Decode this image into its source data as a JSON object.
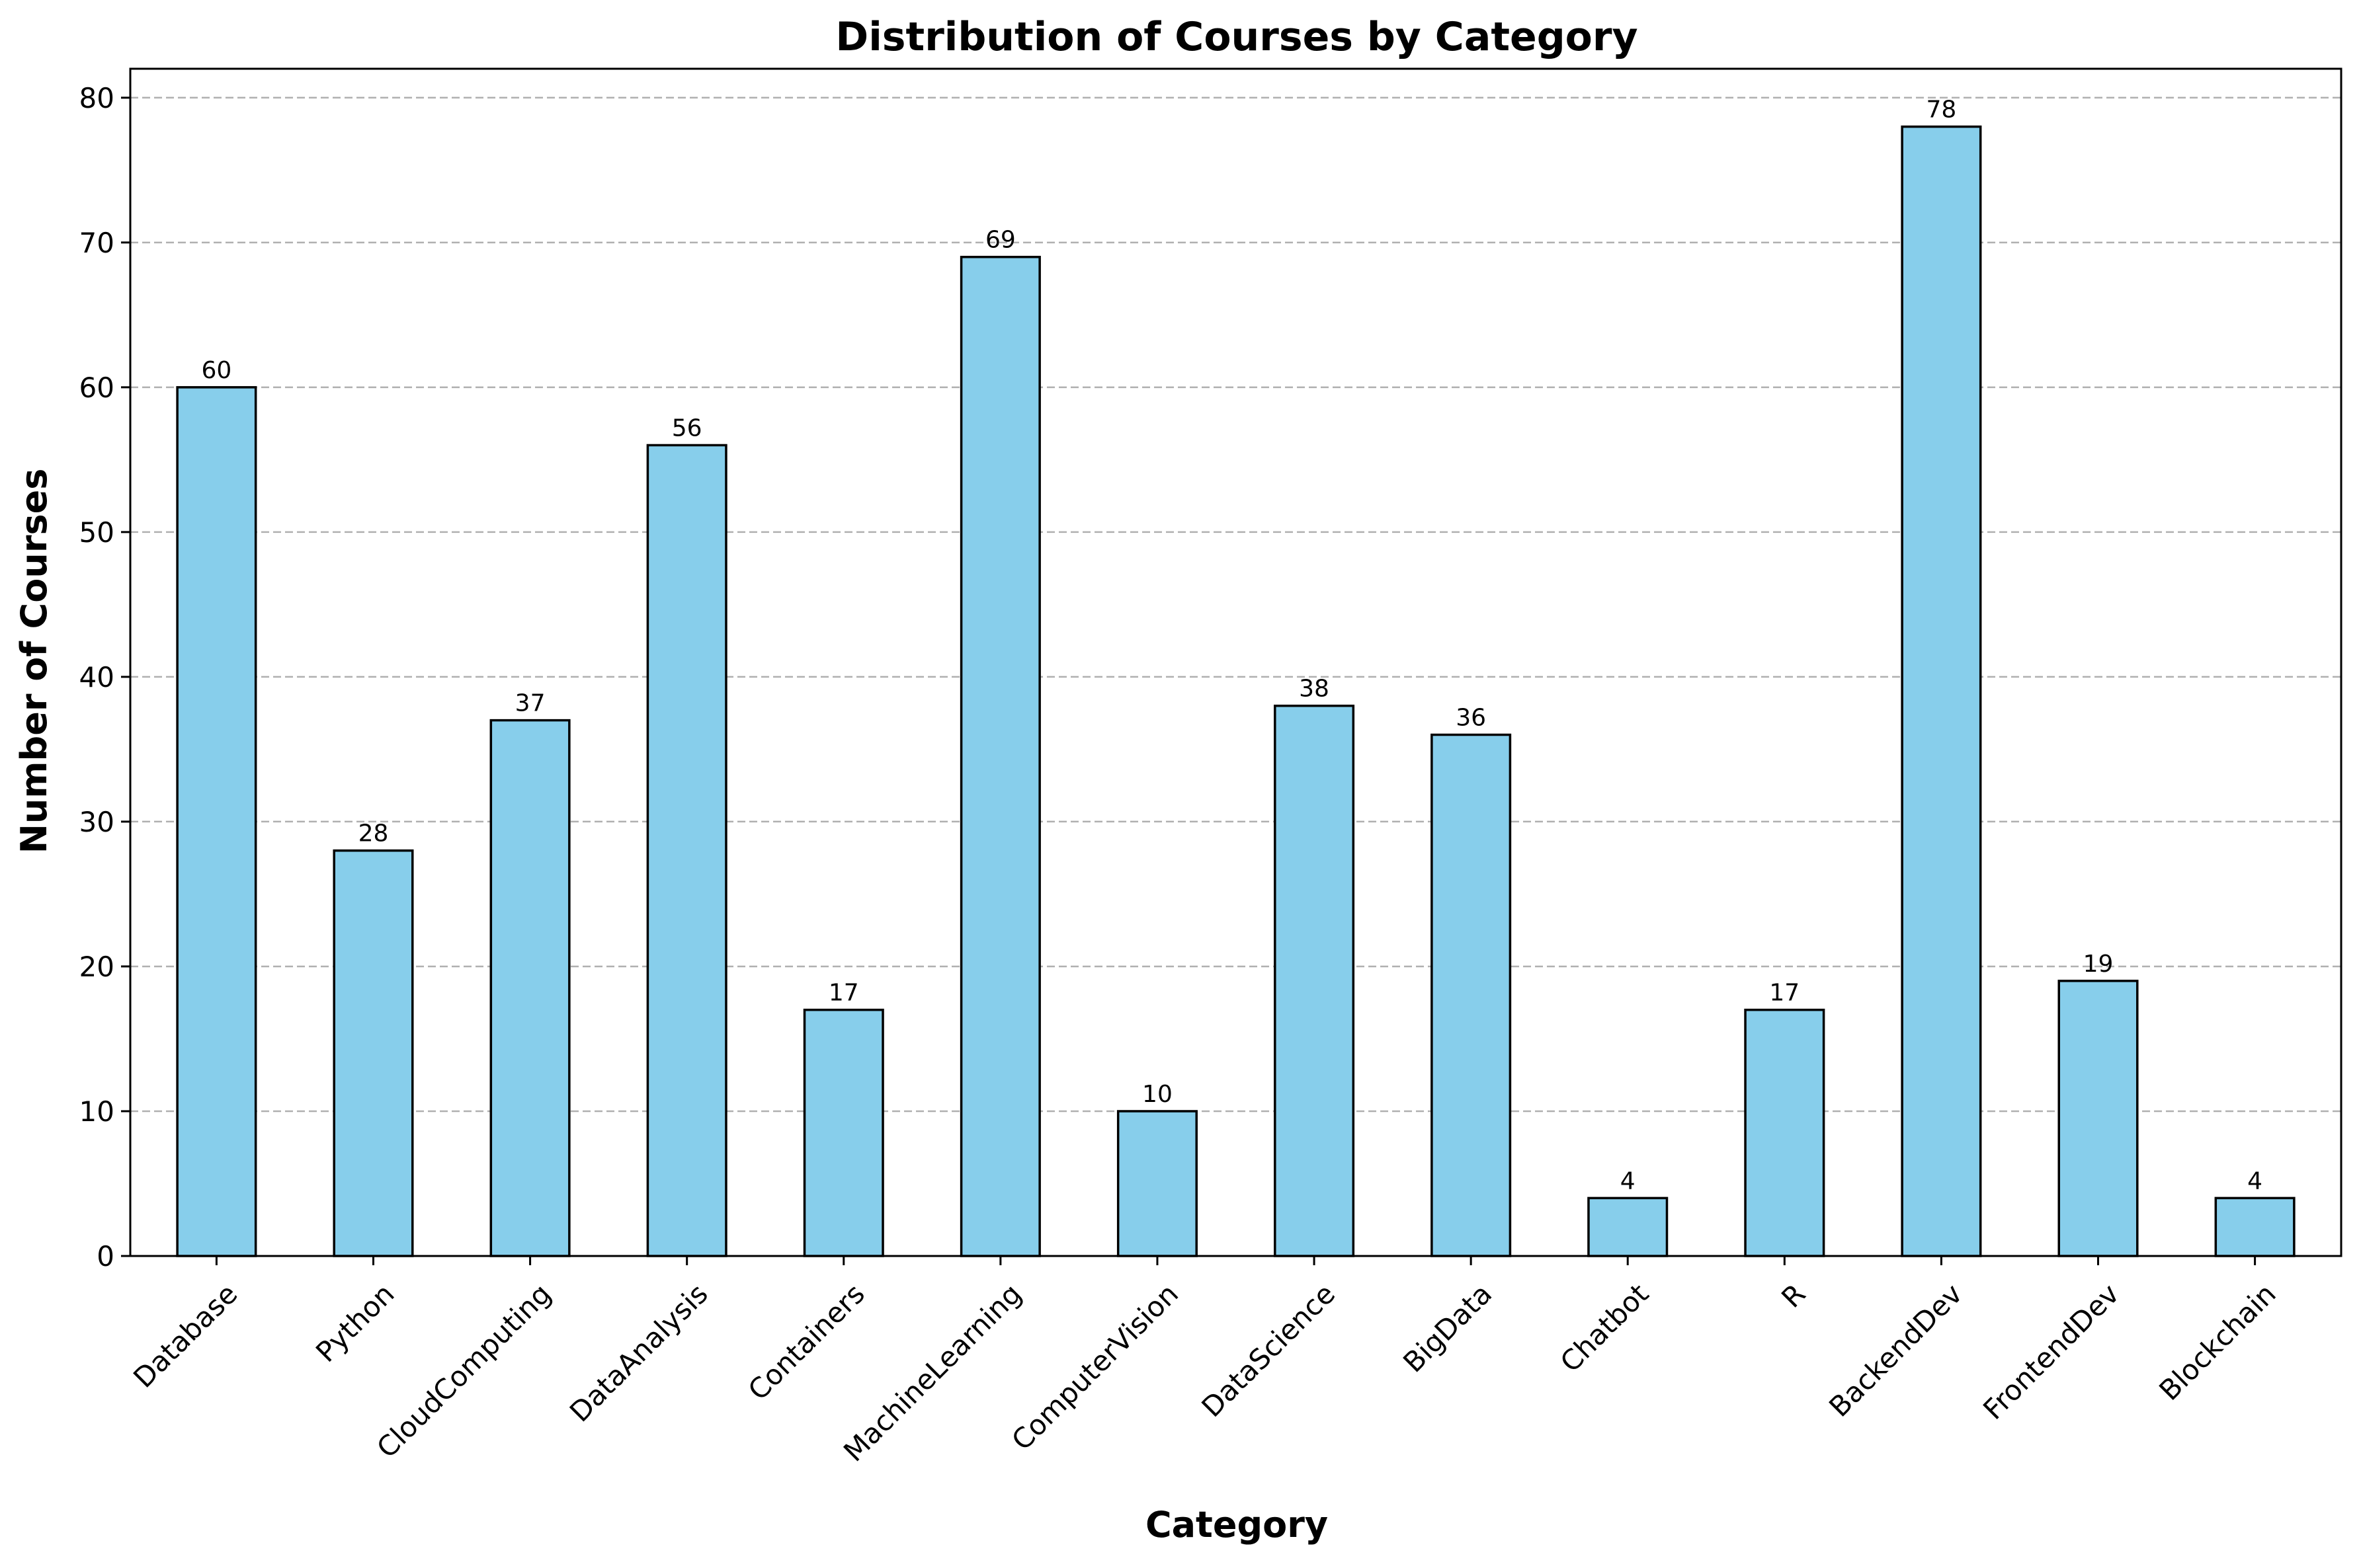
{
  "chart_data": {
    "type": "bar",
    "title": "Distribution of Courses by Category",
    "xlabel": "Category",
    "ylabel": "Number of Courses",
    "categories": [
      "Database",
      "Python",
      "CloudComputing",
      "DataAnalysis",
      "Containers",
      "MachineLearning",
      "ComputerVision",
      "DataScience",
      "BigData",
      "Chatbot",
      "R",
      "BackendDev",
      "FrontendDev",
      "Blockchain"
    ],
    "values": [
      60,
      28,
      37,
      56,
      17,
      69,
      10,
      38,
      36,
      4,
      17,
      78,
      19,
      4
    ],
    "ylim": [
      0,
      82
    ],
    "yticks": [
      0,
      10,
      20,
      30,
      40,
      50,
      60,
      70,
      80
    ],
    "grid": "y-dashed",
    "bar_color": "#87CEEB",
    "edge_color": "#000000",
    "grid_color": "#b0b0b0"
  }
}
